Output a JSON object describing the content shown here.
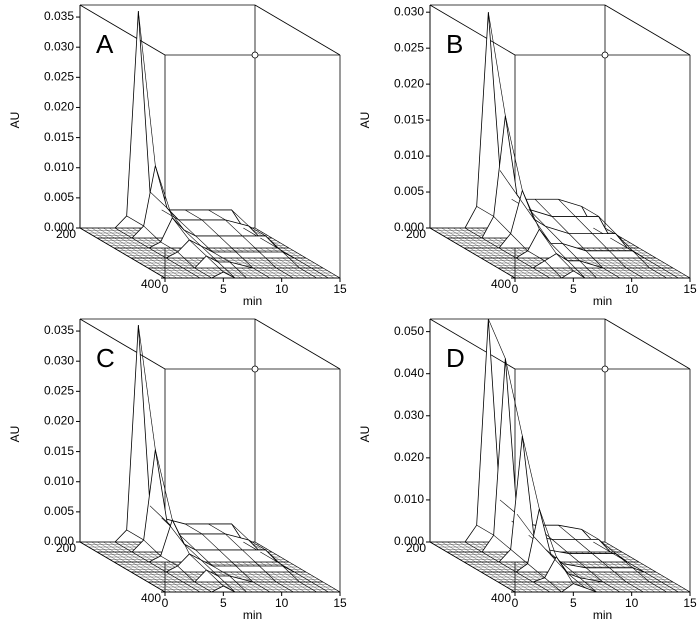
{
  "chart_data": [
    {
      "type": "surface3d",
      "title": "A",
      "ylabel": "AU",
      "xlabel": "min",
      "xlim": [
        0,
        15
      ],
      "xticks": [
        0,
        5,
        10,
        15
      ],
      "zlim": [
        200,
        400
      ],
      "zticks": [
        200,
        400
      ],
      "ylim": [
        0,
        0.037
      ],
      "yticks": [
        {
          "value": 0,
          "label": "0.000"
        },
        {
          "value": 0.005,
          "label": "0.005"
        },
        {
          "value": 0.01,
          "label": "0.010"
        },
        {
          "value": 0.015,
          "label": "0.015"
        },
        {
          "value": 0.02,
          "label": "0.020"
        },
        {
          "value": 0.025,
          "label": "0.025"
        },
        {
          "value": 0.03,
          "label": "0.030"
        },
        {
          "value": 0.035,
          "label": "0.035"
        }
      ],
      "x": [
        0,
        3,
        4,
        5,
        6,
        7,
        9,
        11,
        13,
        14,
        15
      ],
      "slices": [
        {
          "wavelength": 200,
          "values": [
            0,
            0,
            0.002,
            0.036,
            0.006,
            0.003,
            0.003,
            0.003,
            0.003,
            0,
            0
          ]
        },
        {
          "wavelength": 240,
          "values": [
            0,
            0,
            0.002,
            0.012,
            0.005,
            0.003,
            0.003,
            0.003,
            0.002,
            0,
            0
          ]
        },
        {
          "wavelength": 280,
          "values": [
            0,
            0,
            0.001,
            0.005,
            0.003,
            0.002,
            0.002,
            0.002,
            0.002,
            0,
            0
          ]
        },
        {
          "wavelength": 320,
          "values": [
            0,
            0,
            0.001,
            0.003,
            0.002,
            0.001,
            0.001,
            0.001,
            0.001,
            0,
            0
          ]
        },
        {
          "wavelength": 360,
          "values": [
            0,
            0,
            0,
            0.002,
            0.001,
            0.001,
            0,
            0,
            0,
            0,
            0
          ]
        },
        {
          "wavelength": 400,
          "values": [
            0,
            0,
            0,
            0.001,
            0,
            0,
            0,
            0,
            0,
            0,
            0
          ]
        }
      ]
    },
    {
      "type": "surface3d",
      "title": "B",
      "ylabel": "AU",
      "xlabel": "min",
      "xlim": [
        0,
        15
      ],
      "xticks": [
        0,
        5,
        10,
        15
      ],
      "zlim": [
        200,
        400
      ],
      "zticks": [
        200,
        400
      ],
      "ylim": [
        0,
        0.031
      ],
      "yticks": [
        {
          "value": 0,
          "label": "0.000"
        },
        {
          "value": 0.005,
          "label": "0.005"
        },
        {
          "value": 0.01,
          "label": "0.010"
        },
        {
          "value": 0.015,
          "label": "0.015"
        },
        {
          "value": 0.02,
          "label": "0.020"
        },
        {
          "value": 0.025,
          "label": "0.025"
        },
        {
          "value": 0.03,
          "label": "0.030"
        }
      ],
      "x": [
        0,
        3,
        4,
        5,
        6,
        7,
        9,
        11,
        13,
        14,
        15
      ],
      "slices": [
        {
          "wavelength": 200,
          "values": [
            0,
            0,
            0.003,
            0.03,
            0.008,
            0.004,
            0.004,
            0.004,
            0.003,
            0,
            0
          ]
        },
        {
          "wavelength": 240,
          "values": [
            0,
            0,
            0.003,
            0.017,
            0.006,
            0.004,
            0.003,
            0.003,
            0.003,
            0,
            0
          ]
        },
        {
          "wavelength": 280,
          "values": [
            0,
            0,
            0.002,
            0.008,
            0.004,
            0.003,
            0.002,
            0.002,
            0.002,
            0,
            0
          ]
        },
        {
          "wavelength": 320,
          "values": [
            0,
            0,
            0.001,
            0.004,
            0.002,
            0.002,
            0.001,
            0.001,
            0.001,
            0,
            0
          ]
        },
        {
          "wavelength": 360,
          "values": [
            0,
            0,
            0.001,
            0.002,
            0.001,
            0.001,
            0,
            0,
            0,
            0,
            0
          ]
        },
        {
          "wavelength": 400,
          "values": [
            0,
            0,
            0,
            0.001,
            0,
            0,
            0,
            0,
            0,
            0,
            0
          ]
        }
      ]
    },
    {
      "type": "surface3d",
      "title": "C",
      "ylabel": "AU",
      "xlabel": "min",
      "xlim": [
        0,
        15
      ],
      "xticks": [
        0,
        5,
        10,
        15
      ],
      "zlim": [
        200,
        400
      ],
      "zticks": [
        200,
        400
      ],
      "ylim": [
        0,
        0.037
      ],
      "yticks": [
        {
          "value": 0,
          "label": "0.000"
        },
        {
          "value": 0.005,
          "label": "0.005"
        },
        {
          "value": 0.01,
          "label": "0.010"
        },
        {
          "value": 0.015,
          "label": "0.015"
        },
        {
          "value": 0.02,
          "label": "0.020"
        },
        {
          "value": 0.025,
          "label": "0.025"
        },
        {
          "value": 0.03,
          "label": "0.030"
        },
        {
          "value": 0.035,
          "label": "0.035"
        }
      ],
      "x": [
        0,
        3,
        4,
        5,
        6,
        7,
        9,
        11,
        13,
        14,
        15
      ],
      "slices": [
        {
          "wavelength": 200,
          "values": [
            0,
            0,
            0.002,
            0.036,
            0.006,
            0.004,
            0.003,
            0.003,
            0.003,
            0,
            0
          ]
        },
        {
          "wavelength": 240,
          "values": [
            0,
            0,
            0.002,
            0.017,
            0.005,
            0.003,
            0.003,
            0.003,
            0.002,
            0,
            0
          ]
        },
        {
          "wavelength": 280,
          "values": [
            0,
            0,
            0.001,
            0.007,
            0.003,
            0.002,
            0.002,
            0.002,
            0.002,
            0,
            0
          ]
        },
        {
          "wavelength": 320,
          "values": [
            0,
            0,
            0.001,
            0.003,
            0.002,
            0.001,
            0.001,
            0.001,
            0.001,
            0,
            0
          ]
        },
        {
          "wavelength": 360,
          "values": [
            0,
            0,
            0,
            0.002,
            0.001,
            0.001,
            0,
            0,
            0,
            0,
            0
          ]
        },
        {
          "wavelength": 400,
          "values": [
            0,
            0,
            0,
            0.001,
            0,
            0,
            0,
            0,
            0,
            0,
            0
          ]
        }
      ]
    },
    {
      "type": "surface3d",
      "title": "D",
      "ylabel": "AU",
      "xlabel": "min",
      "xlim": [
        0,
        15
      ],
      "xticks": [
        0,
        5,
        10,
        15
      ],
      "zlim": [
        200,
        400
      ],
      "zticks": [
        200,
        400
      ],
      "ylim": [
        0,
        0.053
      ],
      "yticks": [
        {
          "value": 0,
          "label": "0.000"
        },
        {
          "value": 0.01,
          "label": "0.010"
        },
        {
          "value": 0.02,
          "label": "0.020"
        },
        {
          "value": 0.03,
          "label": "0.030"
        },
        {
          "value": 0.04,
          "label": "0.040"
        },
        {
          "value": 0.05,
          "label": "0.050"
        }
      ],
      "x": [
        0,
        3,
        4,
        5,
        6,
        7,
        9,
        11,
        13,
        14,
        15
      ],
      "slices": [
        {
          "wavelength": 200,
          "values": [
            0,
            0,
            0.004,
            0.053,
            0.01,
            0.005,
            0.004,
            0.004,
            0.003,
            0,
            0
          ]
        },
        {
          "wavelength": 240,
          "values": [
            0,
            0,
            0.004,
            0.046,
            0.009,
            0.004,
            0.003,
            0.003,
            0.003,
            0,
            0
          ]
        },
        {
          "wavelength": 280,
          "values": [
            0,
            0,
            0.003,
            0.03,
            0.006,
            0.003,
            0.002,
            0.002,
            0.002,
            0,
            0
          ]
        },
        {
          "wavelength": 320,
          "values": [
            0,
            0,
            0.002,
            0.015,
            0.004,
            0.002,
            0.001,
            0.001,
            0.001,
            0,
            0
          ]
        },
        {
          "wavelength": 360,
          "values": [
            0,
            0,
            0.001,
            0.006,
            0.002,
            0.001,
            0,
            0,
            0,
            0,
            0
          ]
        },
        {
          "wavelength": 400,
          "values": [
            0,
            0,
            0,
            0.002,
            0.001,
            0,
            0,
            0,
            0,
            0,
            0
          ]
        }
      ]
    }
  ]
}
